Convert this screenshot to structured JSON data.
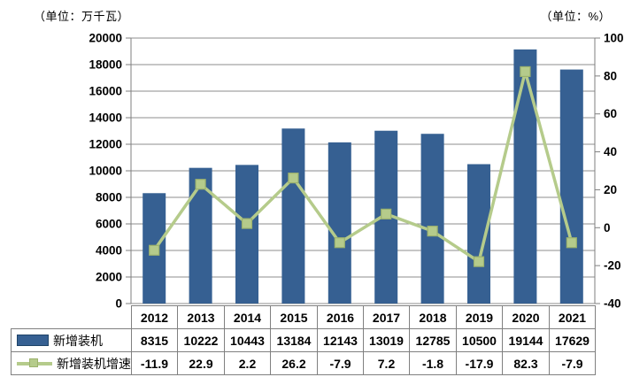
{
  "units": {
    "left_label": "（单位：万千瓦）",
    "right_label": "（单位：%）"
  },
  "chart_data": {
    "type": "bar",
    "subtype": "bar+line combo",
    "categories": [
      "2012",
      "2013",
      "2014",
      "2015",
      "2016",
      "2017",
      "2018",
      "2019",
      "2020",
      "2021"
    ],
    "series": [
      {
        "name": "新增装机",
        "type": "bar",
        "axis": "left",
        "values": [
          8315,
          10222,
          10443,
          13184,
          12143,
          13019,
          12785,
          10500,
          19144,
          17629
        ]
      },
      {
        "name": "新增装机增速",
        "type": "line",
        "axis": "right",
        "values": [
          -11.9,
          22.9,
          2.2,
          26.2,
          -7.9,
          7.2,
          -1.8,
          -17.9,
          82.3,
          -7.9
        ]
      }
    ],
    "left_axis": {
      "min": 0,
      "max": 20000,
      "step": 2000,
      "unit": "万千瓦"
    },
    "right_axis": {
      "min": -40,
      "max": 100,
      "step": 20,
      "unit": "%"
    },
    "grid": true,
    "legend_position": "bottom-table"
  },
  "colors": {
    "bar_fill": "#366092",
    "bar_swatch_border": "#1F4468",
    "line": "#B5CB8B",
    "marker_fill": "#B5CB8B",
    "marker_border": "#9CB26D",
    "grid": "#8C8C8C",
    "axis": "#7F7F7F",
    "table_border": "#808080",
    "text": "#000000"
  }
}
